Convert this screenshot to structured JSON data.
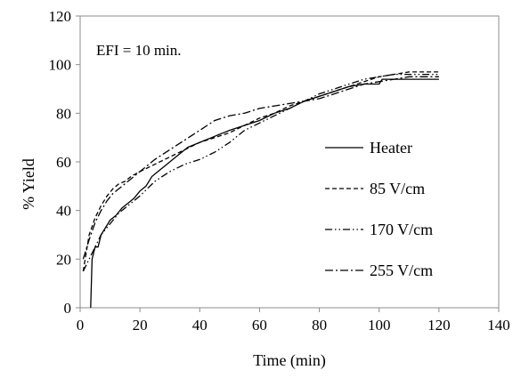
{
  "chart_data": {
    "type": "line",
    "title": "",
    "annotation": "EFI = 10 min.",
    "xlabel": "Time (min)",
    "ylabel": "% Yield",
    "xlim": [
      0,
      140
    ],
    "ylim": [
      0,
      120
    ],
    "xticks": [
      0,
      20,
      40,
      60,
      80,
      100,
      120,
      140
    ],
    "yticks": [
      0,
      20,
      40,
      60,
      80,
      100,
      120
    ],
    "grid": false,
    "legend_position": "right",
    "series": [
      {
        "name": "Heater",
        "line_style": "solid",
        "x": [
          3.5,
          4,
          5,
          6,
          7,
          8,
          10,
          12,
          14,
          16,
          18,
          20,
          22,
          24,
          26,
          28,
          30,
          32,
          34,
          36,
          38,
          40,
          42,
          44,
          46,
          48,
          50,
          55,
          60,
          65,
          70,
          75,
          80,
          85,
          90,
          95,
          100,
          101,
          110,
          120
        ],
        "y": [
          0,
          20,
          25,
          25,
          30,
          32,
          36,
          38,
          41,
          43,
          45,
          48,
          50,
          54,
          56,
          58,
          60,
          62,
          64,
          66,
          67,
          68,
          69,
          70,
          71,
          72,
          73,
          75,
          77,
          80,
          82,
          85,
          87,
          89,
          91,
          92,
          92,
          94,
          94,
          94
        ]
      },
      {
        "name": "85 V/cm",
        "line_style": "dashed",
        "x": [
          1,
          3,
          5,
          7,
          9,
          11,
          13,
          15,
          17,
          20,
          25,
          30,
          35,
          40,
          45,
          50,
          55,
          60,
          65,
          70,
          75,
          80,
          85,
          90,
          95,
          100,
          105,
          110,
          115,
          120
        ],
        "y": [
          15,
          30,
          37,
          42,
          46,
          49,
          51,
          52,
          54,
          56,
          59,
          62,
          65,
          68,
          70,
          72,
          75,
          78,
          80,
          83,
          85,
          87,
          89,
          91,
          93,
          95,
          96,
          97,
          97,
          97
        ]
      },
      {
        "name": "170 V/cm",
        "line_style": "dash-dot-dot",
        "x": [
          1,
          3,
          5,
          7,
          9,
          11,
          13,
          15,
          17,
          20,
          25,
          30,
          35,
          40,
          45,
          50,
          55,
          60,
          65,
          70,
          75,
          80,
          85,
          90,
          95,
          100,
          105,
          110,
          115,
          120
        ],
        "y": [
          15,
          20,
          25,
          30,
          33,
          36,
          39,
          41,
          43,
          46,
          52,
          56,
          59,
          61,
          64,
          68,
          73,
          76,
          79,
          82,
          85,
          88,
          90,
          92,
          94,
          95,
          96,
          96,
          96,
          96
        ]
      },
      {
        "name": "255 V/cm",
        "line_style": "dash-dot",
        "x": [
          1,
          3,
          5,
          7,
          9,
          11,
          13,
          15,
          17,
          20,
          25,
          30,
          35,
          40,
          45,
          50,
          55,
          60,
          65,
          70,
          75,
          80,
          85,
          90,
          95,
          100,
          105,
          110,
          115,
          120
        ],
        "y": [
          20,
          28,
          35,
          40,
          44,
          47,
          49,
          51,
          53,
          56,
          61,
          65,
          69,
          73,
          77,
          79,
          80,
          82,
          83,
          84,
          85,
          86,
          88,
          90,
          92,
          93,
          94,
          95,
          95,
          95
        ]
      }
    ]
  }
}
